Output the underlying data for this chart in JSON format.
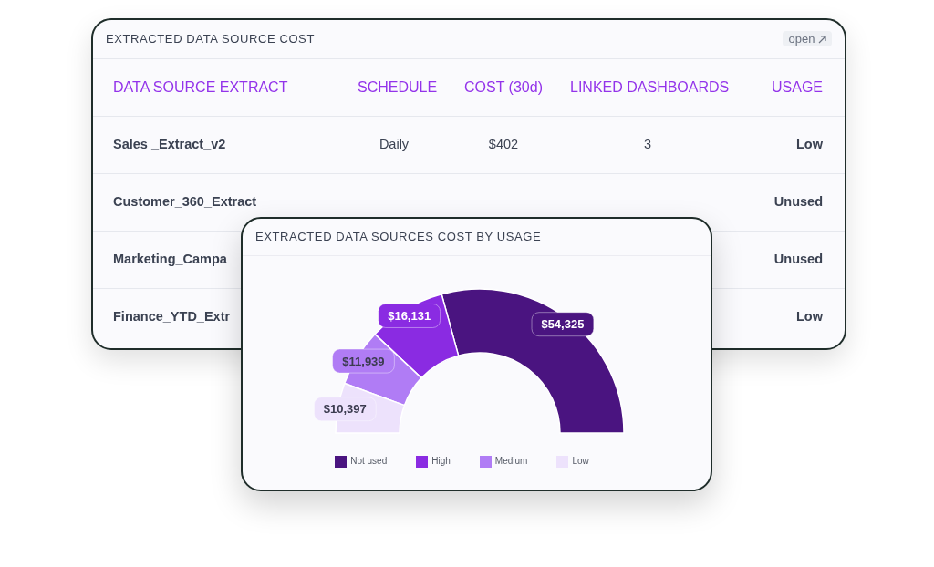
{
  "chart_data": [
    {
      "type": "other",
      "title": "EXTRACTED DATA SOURCE COST",
      "annotations": [
        "open"
      ],
      "categories": [
        "DATA SOURCE EXTRACT",
        "SCHEDULE",
        "COST (30d)",
        "LINKED DASHBOARDS",
        "USAGE"
      ],
      "cell_labels": [
        [
          "Sales _Extract_v2",
          "Daily",
          "$402",
          "3",
          "Low"
        ],
        [
          "Customer_360_Extract",
          null,
          null,
          null,
          "Unused"
        ],
        [
          "Marketing_Campa",
          null,
          null,
          null,
          "Unused"
        ],
        [
          "Finance_YTD_Extr",
          null,
          null,
          null,
          "Low"
        ]
      ]
    },
    {
      "type": "donut",
      "title": "EXTRACTED DATA SOURCES COST BY USAGE",
      "categories": [
        "Not used",
        "High",
        "Medium",
        "Low"
      ],
      "values": [
        54325,
        16131,
        11939,
        10397
      ],
      "colors": [
        "#4a1480",
        "#8a2be2",
        "#b07cf5",
        "#ede2fc"
      ],
      "value_labels": [
        "$54,325",
        "$16,131",
        "$11,939",
        "$10,397"
      ],
      "legend": "bottom"
    }
  ]
}
